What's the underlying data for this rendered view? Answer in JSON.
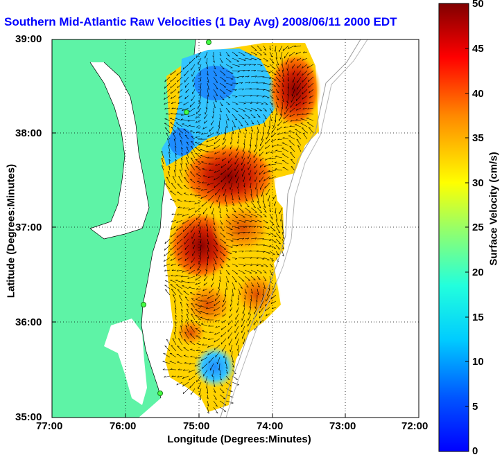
{
  "title": "Southern Mid-Atlantic Raw Velocities (1 Day Avg) 2008/06/11 2000 EDT",
  "map": {
    "y_axis_label": "Latitude (Degrees:Minutes)",
    "x_axis_label": "Longitude (Degrees:Minutes)",
    "lat_ticks": [
      "39:00",
      "38:00",
      "37:00",
      "36:00",
      "35:00"
    ],
    "lon_ticks": [
      "77:00",
      "76:00",
      "75:00",
      "74:00",
      "73:00",
      "72:00"
    ],
    "lon_range": [
      -77,
      -72
    ],
    "lat_range": [
      35,
      39
    ],
    "grid": true,
    "land_color": "#5ef3a6",
    "station_color": "#44ff44"
  },
  "colorbar": {
    "label": "Surface Velocity (cm/s)",
    "ticks": [
      "50",
      "45",
      "40",
      "35",
      "30",
      "25",
      "20",
      "15",
      "10",
      "5",
      "0"
    ],
    "range": [
      0,
      50
    ],
    "colormap": "jet"
  }
}
